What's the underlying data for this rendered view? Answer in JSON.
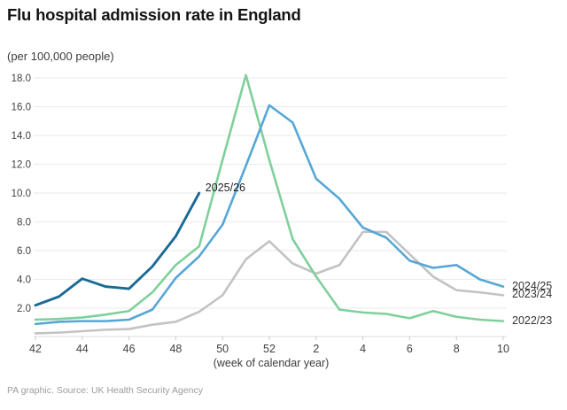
{
  "header": {
    "title": "Flu hospital admission rate in England",
    "subtitle": "(per 100,000 people)"
  },
  "footer": {
    "source": "PA graphic. Source: UK Health Security Agency"
  },
  "colors": {
    "series_2025_26": "#1a6a96",
    "series_2024_25": "#56a7d6",
    "series_2023_24": "#c3c3c3",
    "series_2022_23": "#7fd09b",
    "gridline": "#eaeaea",
    "axis_line": "#dedede",
    "tick_mark": "#c8c8c8",
    "tick_label": "#404040",
    "inline_label": "#222222"
  },
  "chart_data": {
    "type": "line",
    "title": "Flu hospital admission rate in England",
    "ylabel": "(per 100,000 people)",
    "xlabel": "(week of calendar year)",
    "x_categories": [
      42,
      43,
      44,
      45,
      46,
      47,
      48,
      49,
      50,
      51,
      52,
      1,
      2,
      3,
      4,
      5,
      6,
      7,
      8,
      9,
      10
    ],
    "x_tick_labels": [
      "42",
      "44",
      "46",
      "48",
      "50",
      "52",
      "2",
      "4",
      "6",
      "8",
      "10"
    ],
    "y_ticks": [
      2,
      4,
      6,
      8,
      10,
      12,
      14,
      16,
      18
    ],
    "ylim": [
      0,
      18.5
    ],
    "grid": "horizontal",
    "legend_position": "line-end-right",
    "series": [
      {
        "name": "2025/26",
        "color": "#1a6a96",
        "label_inline": true,
        "values": [
          2.2,
          2.8,
          4.05,
          3.5,
          3.35,
          4.9,
          7.0,
          10.0
        ]
      },
      {
        "name": "2024/25",
        "color": "#56a7d6",
        "label_inline": false,
        "values": [
          0.9,
          1.05,
          1.1,
          1.1,
          1.2,
          1.9,
          4.1,
          5.6,
          7.8,
          11.9,
          16.1,
          14.9,
          11.0,
          9.6,
          7.6,
          6.9,
          5.3,
          4.8,
          5.0,
          4.0,
          3.5
        ]
      },
      {
        "name": "2023/24",
        "color": "#c3c3c3",
        "label_inline": false,
        "values": [
          0.25,
          0.3,
          0.4,
          0.5,
          0.55,
          0.85,
          1.05,
          1.75,
          2.9,
          5.4,
          6.65,
          5.1,
          4.4,
          5.0,
          7.3,
          7.3,
          5.75,
          4.2,
          3.25,
          3.1,
          2.9
        ]
      },
      {
        "name": "2022/23",
        "color": "#7fd09b",
        "label_inline": false,
        "values": [
          1.2,
          1.25,
          1.35,
          1.55,
          1.8,
          3.1,
          5.0,
          6.3,
          12.3,
          18.2,
          12.3,
          6.8,
          4.2,
          1.9,
          1.7,
          1.6,
          1.3,
          1.8,
          1.4,
          1.2,
          1.1
        ]
      }
    ]
  }
}
